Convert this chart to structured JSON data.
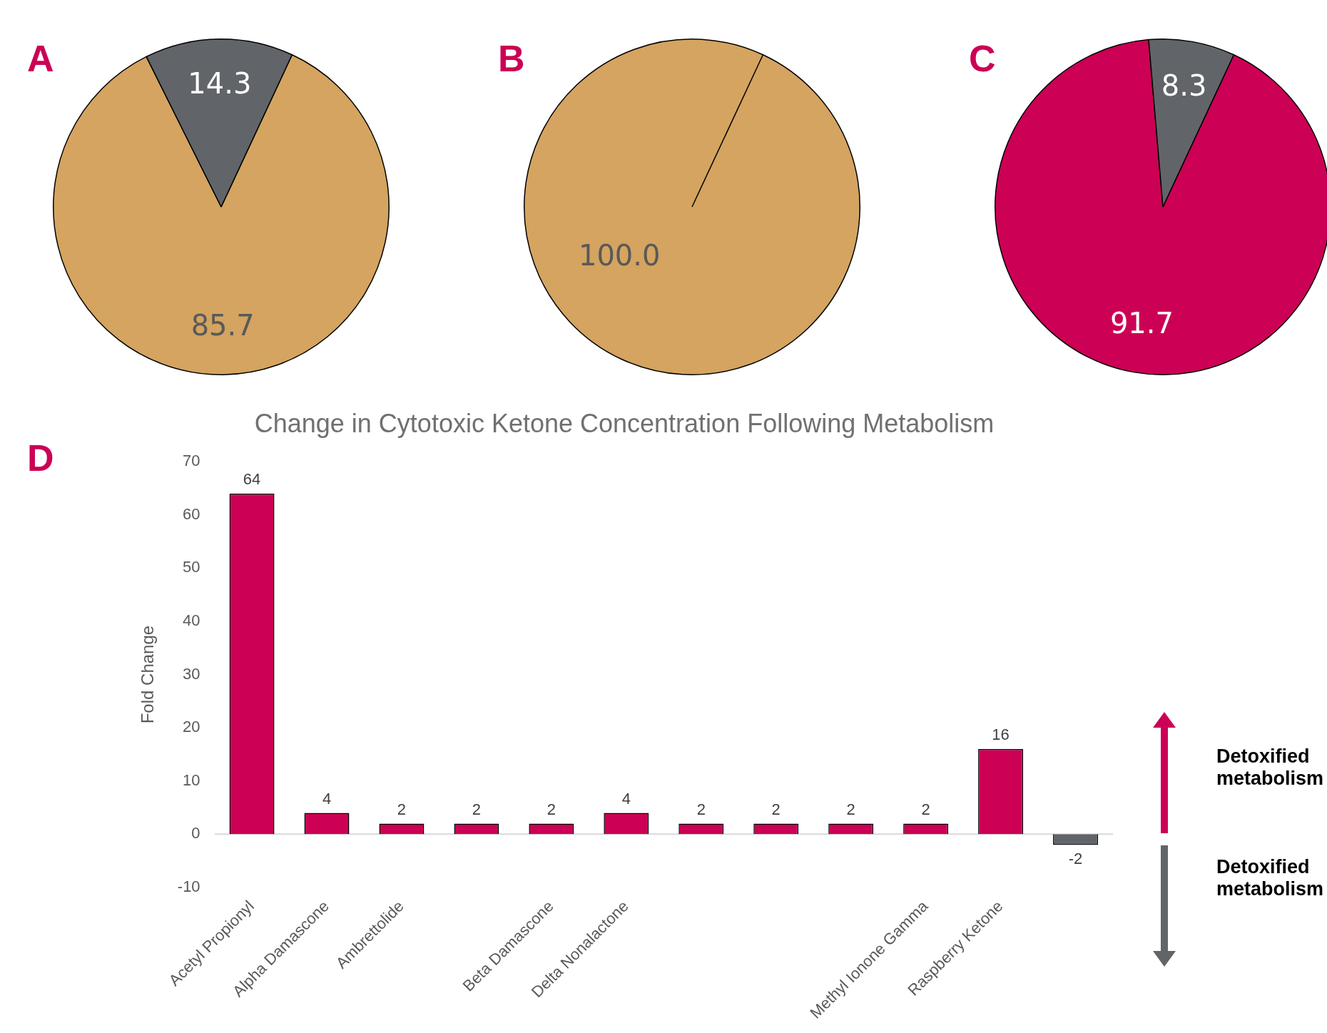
{
  "chart_data": [
    {
      "type": "pie",
      "title": "A",
      "categories": [
        null,
        null
      ],
      "values": [
        85.7,
        14.3
      ],
      "colors": [
        "#d4a460",
        "#616468"
      ],
      "data_labels": true
    },
    {
      "type": "pie",
      "title": "B",
      "categories": [
        null
      ],
      "values": [
        100
      ],
      "colors": [
        "#d4a460"
      ],
      "value_labels": [
        "100.0"
      ]
    },
    {
      "type": "pie",
      "title": "C",
      "categories": [
        null,
        null
      ],
      "values": [
        91.7,
        8.3
      ],
      "colors": [
        "#cc0055",
        "#616468"
      ],
      "data_labels": true
    },
    {
      "type": "bar",
      "title": "Change in Cytotoxic Ketone Concentration Following Metabolism",
      "ylabel": "Fold Change",
      "categories": [
        "Acetyl Propionyl",
        "Alpha Damascone",
        "Ambrettolide",
        null,
        "Beta Damascone",
        "Delta Nonalactone",
        null,
        null,
        null,
        "Methyl Ionone Gamma",
        "Raspberry Ketone",
        null
      ],
      "values": [
        64,
        4,
        2,
        2,
        2,
        4,
        2,
        2,
        2,
        2,
        16,
        -2
      ],
      "colors": [
        "#cc0055",
        "#cc0055",
        "#cc0055",
        "#cc0055",
        "#cc0055",
        "#cc0055",
        "#cc0055",
        "#cc0055",
        "#cc0055",
        "#cc0055",
        "#cc0055",
        "#616468"
      ],
      "ylim": [
        -10,
        70
      ],
      "yticks": [
        -10,
        0,
        10,
        20,
        30,
        40,
        50,
        60,
        70
      ],
      "grid": false,
      "legend": false,
      "data_labels": true,
      "ref_lines": [
        {
          "axis": "y",
          "value": 0,
          "color": "#d9d9d9"
        }
      ],
      "annotations": [
        "D",
        "Detoxified\nmetabolism",
        "Detoxified\nmetabolism"
      ]
    }
  ]
}
